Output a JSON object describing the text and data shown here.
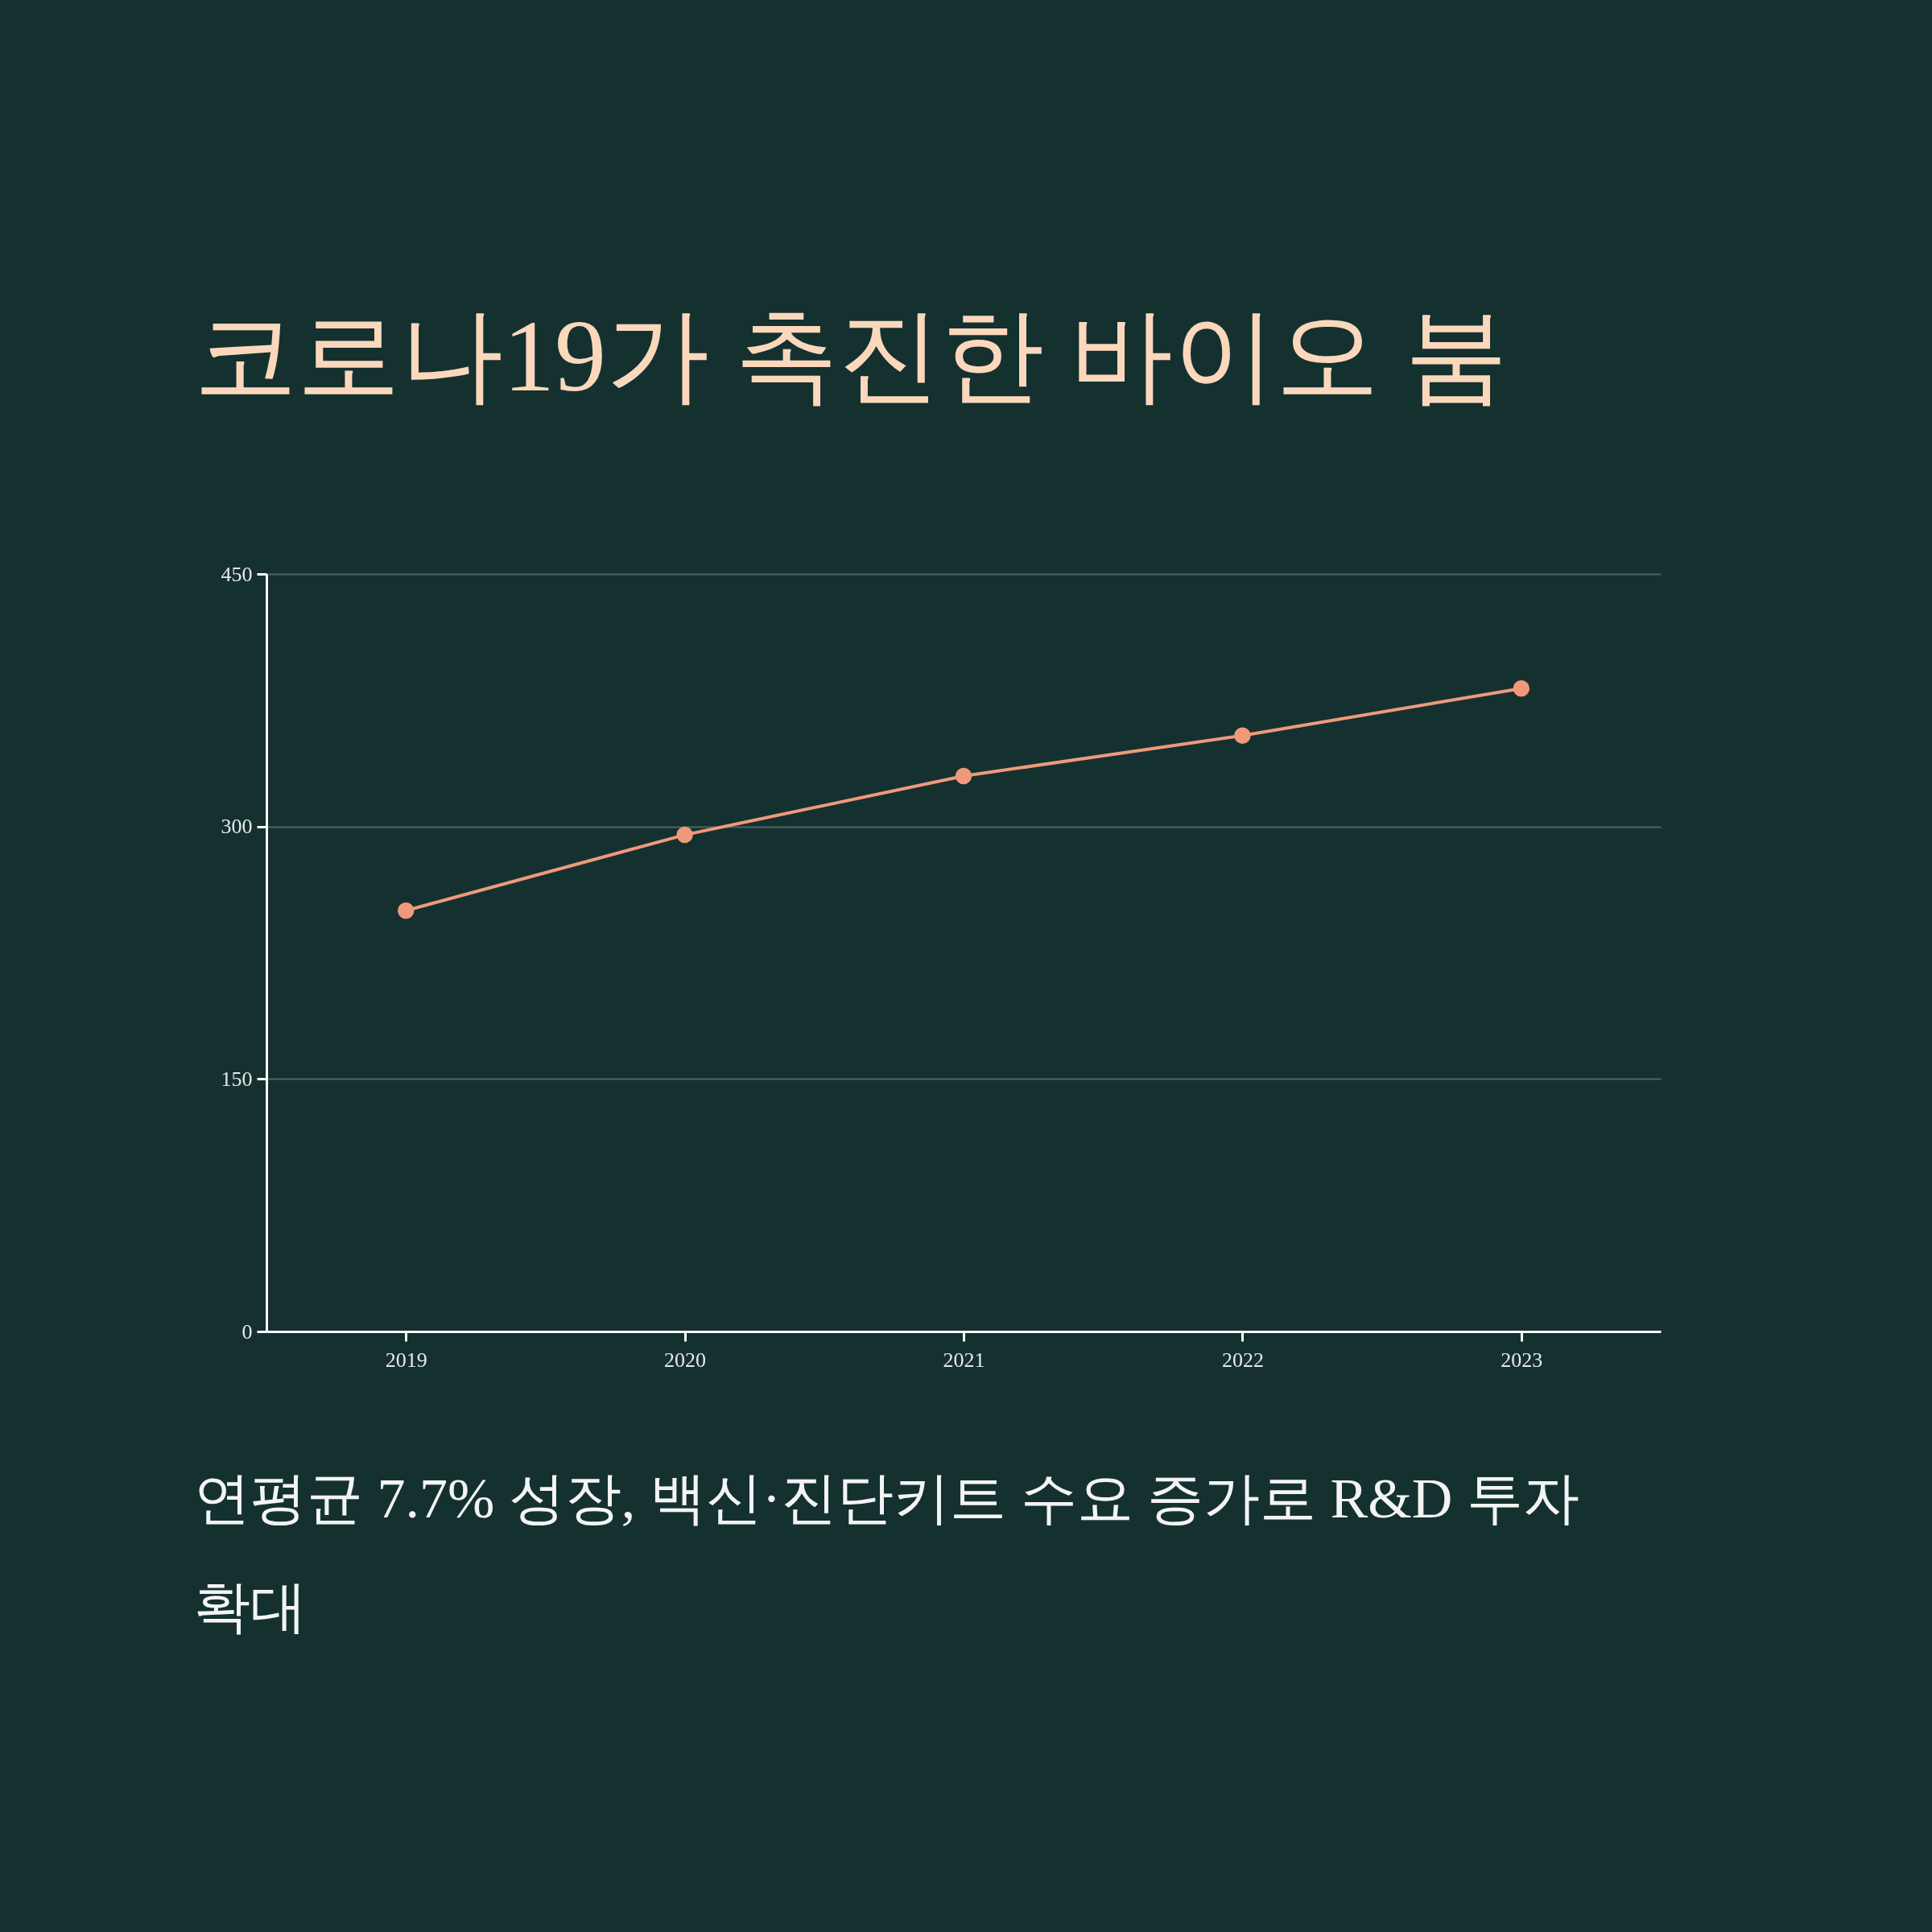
{
  "chart_data": {
    "type": "line",
    "title": "코로나19가 촉진한 바이오 붐",
    "annotations": [
      "연평균 7.7% 성장, 백신·진단키트 수요 증가로 R&D 투자 확대"
    ],
    "x": [
      2019,
      2020,
      2021,
      2022,
      2023
    ],
    "series": [
      {
        "color": "#f0997a",
        "values": [
          250,
          295,
          330,
          354,
          382
        ]
      }
    ],
    "xlim": [
      2018.5,
      2023.5
    ],
    "xticks": [
      2019,
      2020,
      2021,
      2022,
      2023
    ],
    "ylim": [
      0,
      450
    ],
    "yticks": [
      0,
      150,
      300,
      450
    ],
    "grid": "y",
    "marker": "circle",
    "line_style": "solid"
  }
}
